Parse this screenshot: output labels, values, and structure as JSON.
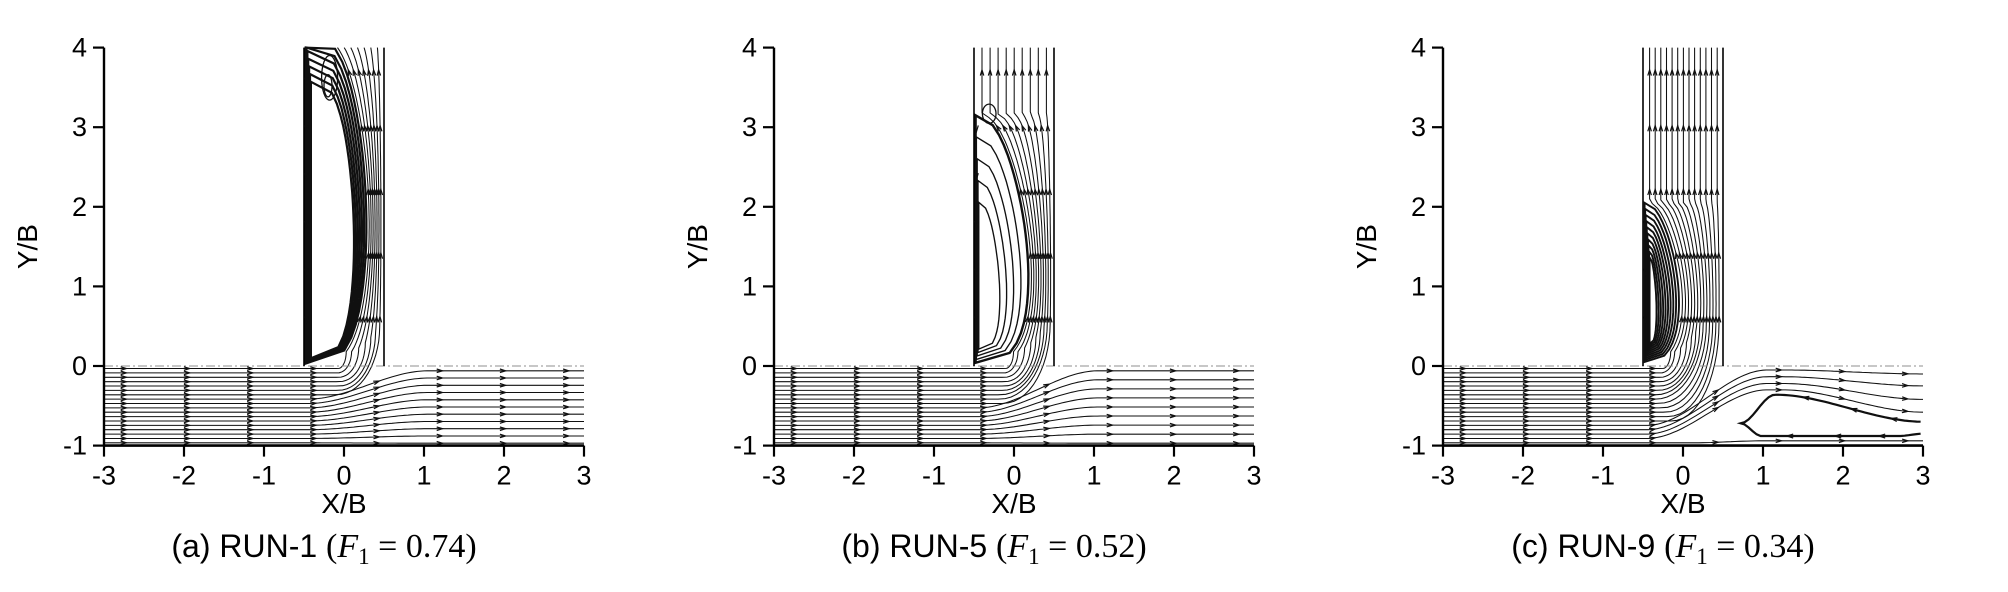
{
  "figure_name": "junction-streamline-figure",
  "chart_data": {
    "type": "streamline",
    "axes": {
      "x": {
        "label": "X/B",
        "min": -3,
        "max": 3,
        "ticks": [
          -3,
          -2,
          -1,
          0,
          1,
          2,
          3
        ]
      },
      "y": {
        "label": "Y/B",
        "min": -1,
        "max": 4,
        "ticks": [
          -1,
          0,
          1,
          2,
          3,
          4
        ]
      }
    },
    "geometry": {
      "main_channel_y": [
        -1,
        0
      ],
      "branch_x": [
        -0.5,
        0.5
      ],
      "branch_y": [
        0,
        4
      ],
      "wall_line_y": 0
    },
    "panels": [
      {
        "run": "RUN-1",
        "F1": 0.74,
        "caption": {
          "prefix": "(a) RUN-1 ",
          "open": "(",
          "symbol": "F",
          "sub": "1",
          "rest": " = 0.74)"
        },
        "flow": {
          "n_streamlines": 18,
          "n_into_branch": 7,
          "continuing": {
            "y_exit_top": -0.06,
            "y_exit_bottom": -0.97
          },
          "bubble": {
            "x_left": -0.48,
            "x_right_max": 0.28,
            "y_bottom": 0.03,
            "y_top": 4.15,
            "loops": 7,
            "pack": 0.26,
            "apex_drop": 2.6,
            "left_step": 0.011,
            "skew": 0.8,
            "pw": 0.35,
            "stroke_outer": 2.2,
            "stroke_inner": 2.2,
            "inner_loops": [
              {
                "cx": -0.18,
                "cy": 3.62,
                "rx": 0.1,
                "ry": 0.28
              },
              {
                "cx": -0.2,
                "cy": 3.52,
                "rx": 0.05,
                "ry": 0.14
              }
            ]
          },
          "separation": null
        }
      },
      {
        "run": "RUN-5",
        "F1": 0.52,
        "caption": {
          "prefix": "(b) RUN-5 ",
          "open": "(",
          "symbol": "F",
          "sub": "1",
          "rest": " = 0.52)"
        },
        "flow": {
          "n_streamlines": 18,
          "n_into_branch": 9,
          "continuing": {
            "y_exit_top": -0.06,
            "y_exit_bottom": -0.97
          },
          "bubble": {
            "x_left": -0.48,
            "x_right_max": 0.18,
            "y_bottom": 0.04,
            "y_top": 3.15,
            "loops": 5,
            "pack": 0.72,
            "apex_drop": 1.9,
            "left_step": 0.01,
            "skew": 0.65,
            "pw": 0.5,
            "stroke_outer": 2.4,
            "stroke_inner": 1.35,
            "inner_loops": [
              {
                "cx": -0.31,
                "cy": 3.17,
                "rx": 0.085,
                "ry": 0.12
              }
            ]
          },
          "separation": null
        }
      },
      {
        "run": "RUN-9",
        "F1": 0.34,
        "caption": {
          "prefix": "(c) RUN-9 ",
          "open": "(",
          "symbol": "F",
          "sub": "1",
          "rest": " = 0.34)"
        },
        "flow": {
          "n_streamlines": 18,
          "n_into_branch": 13,
          "continuing": {
            "band": [
              -0.05,
              -0.135,
              -0.22,
              -0.3
            ],
            "exit": [
              -0.1,
              -0.25,
              -0.42,
              -0.58
            ],
            "bottom_line": -0.94
          },
          "bubble": {
            "x_left": -0.48,
            "x_right_max": -0.05,
            "y_bottom": 0.05,
            "y_top": 2.05,
            "loops": 10,
            "pack": 0.85,
            "apex_drop": 0.9,
            "left_step": 0.007,
            "skew": 0.7,
            "pw": 0.55,
            "stroke_outer": 1.9,
            "stroke_inner": 1.9,
            "inner_loops": []
          },
          "separation": {
            "x_nose": 0.72,
            "x_peak": 1.15,
            "x_tail": 3.0,
            "y_nose": -0.72,
            "y_top": -0.36,
            "y_tail_top": -0.7,
            "y_bottom": -0.88
          }
        }
      }
    ]
  }
}
